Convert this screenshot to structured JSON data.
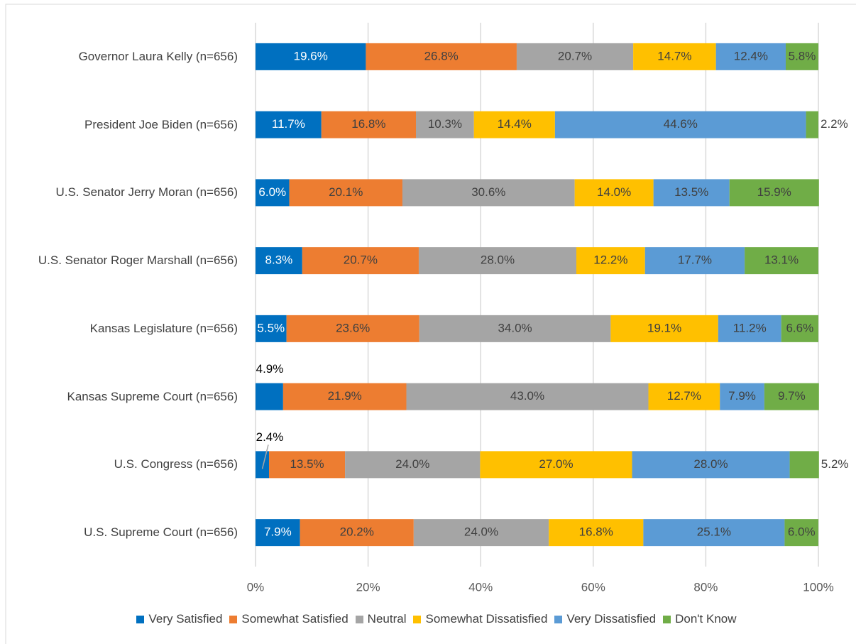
{
  "chart_data": {
    "type": "stacked_bar_horizontal",
    "categories": [
      "Governor Laura Kelly (n=656)",
      "President Joe Biden (n=656)",
      "U.S. Senator Jerry Moran (n=656)",
      "U.S. Senator Roger Marshall (n=656)",
      "Kansas Legislature (n=656)",
      "Kansas Supreme Court (n=656)",
      "U.S. Congress (n=656)",
      "U.S. Supreme Court (n=656)"
    ],
    "series": [
      {
        "name": "Very Satisfied",
        "color": "#0070c0",
        "values": [
          19.6,
          11.7,
          6.0,
          8.3,
          5.5,
          4.9,
          2.4,
          7.9
        ],
        "value_labels": [
          "19.6%",
          "11.7%",
          "6.0%",
          "8.3%",
          "5.5%",
          "4.9%",
          "2.4%",
          "7.9%"
        ]
      },
      {
        "name": "Somewhat Satisfied",
        "color": "#ed7d31",
        "values": [
          26.8,
          16.8,
          20.1,
          20.7,
          23.6,
          21.9,
          13.5,
          20.2
        ],
        "value_labels": [
          "26.8%",
          "16.8%",
          "20.1%",
          "20.7%",
          "23.6%",
          "21.9%",
          "13.5%",
          "20.2%"
        ]
      },
      {
        "name": "Neutral",
        "color": "#a5a5a5",
        "values": [
          20.7,
          10.3,
          30.6,
          28.0,
          34.0,
          43.0,
          24.0,
          24.0
        ],
        "value_labels": [
          "20.7%",
          "10.3%",
          "30.6%",
          "28.0%",
          "34.0%",
          "43.0%",
          "24.0%",
          "24.0%"
        ]
      },
      {
        "name": "Somewhat Dissatisfied",
        "color": "#ffc000",
        "values": [
          14.7,
          14.4,
          14.0,
          12.2,
          19.1,
          12.7,
          27.0,
          16.8
        ],
        "value_labels": [
          "14.7%",
          "14.4%",
          "14.0%",
          "12.2%",
          "19.1%",
          "12.7%",
          "27.0%",
          "16.8%"
        ]
      },
      {
        "name": "Very Dissatisfied",
        "color": "#5b9bd5",
        "values": [
          12.4,
          44.6,
          13.5,
          17.7,
          11.2,
          7.9,
          28.0,
          25.1
        ],
        "value_labels": [
          "12.4%",
          "44.6%",
          "13.5%",
          "17.7%",
          "11.2%",
          "7.9%",
          "28.0%",
          "25.1%"
        ]
      },
      {
        "name": "Don't Know",
        "color": "#70ad47",
        "values": [
          5.8,
          2.2,
          15.9,
          13.1,
          6.6,
          9.7,
          5.2,
          6.0
        ],
        "value_labels": [
          "5.8%",
          "2.2%",
          "15.9%",
          "13.1%",
          "6.6%",
          "9.7%",
          "5.2%",
          "6.0%"
        ]
      }
    ],
    "xlim": [
      0,
      100
    ],
    "xticks": [
      {
        "value": 0,
        "label": "0%"
      },
      {
        "value": 20,
        "label": "20%"
      },
      {
        "value": 40,
        "label": "40%"
      },
      {
        "value": 60,
        "label": "60%"
      },
      {
        "value": 80,
        "label": "80%"
      },
      {
        "value": 100,
        "label": "100%"
      }
    ],
    "grid": true,
    "legend": "bottom"
  }
}
